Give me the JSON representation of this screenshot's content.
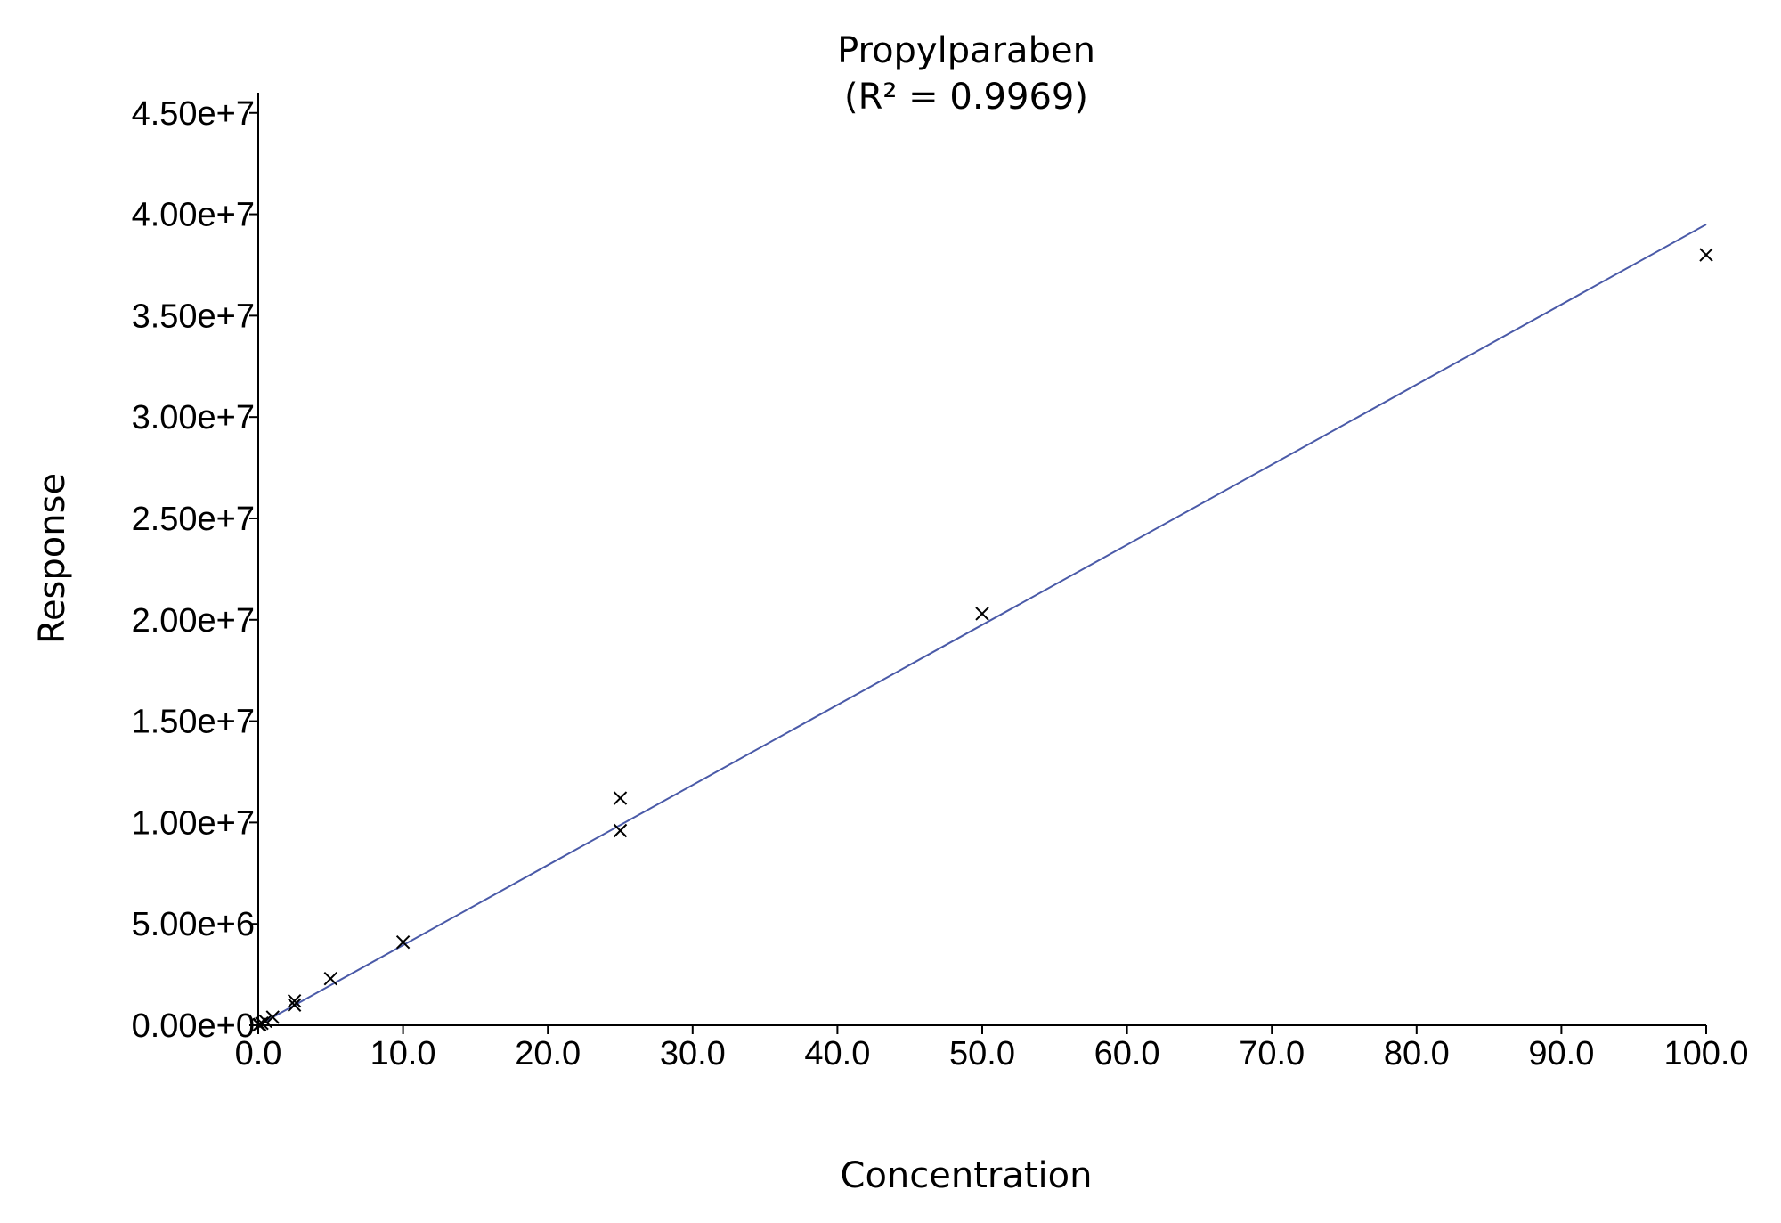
{
  "chart_data": {
    "type": "scatter",
    "title": "Propylparaben",
    "subtitle": "(R² = 0.9969)",
    "xlabel": "Concentration",
    "ylabel": "Response",
    "xlim": [
      0,
      100
    ],
    "ylim": [
      0,
      46000000
    ],
    "grid": false,
    "colors": {
      "fit_line": "#4a5aa8",
      "points": "#000000",
      "axes": "#000000"
    },
    "x_ticks": [
      {
        "value": 0,
        "label": "0.0"
      },
      {
        "value": 10,
        "label": "10.0"
      },
      {
        "value": 20,
        "label": "20.0"
      },
      {
        "value": 30,
        "label": "30.0"
      },
      {
        "value": 40,
        "label": "40.0"
      },
      {
        "value": 50,
        "label": "50.0"
      },
      {
        "value": 60,
        "label": "60.0"
      },
      {
        "value": 70,
        "label": "70.0"
      },
      {
        "value": 80,
        "label": "80.0"
      },
      {
        "value": 90,
        "label": "90.0"
      },
      {
        "value": 100,
        "label": "100.0"
      }
    ],
    "y_ticks": [
      {
        "value": 0,
        "label": "0.00e+0"
      },
      {
        "value": 5000000,
        "label": "5.00e+6"
      },
      {
        "value": 10000000,
        "label": "1.00e+7"
      },
      {
        "value": 15000000,
        "label": "1.50e+7"
      },
      {
        "value": 20000000,
        "label": "2.00e+7"
      },
      {
        "value": 25000000,
        "label": "2.50e+7"
      },
      {
        "value": 30000000,
        "label": "3.00e+7"
      },
      {
        "value": 35000000,
        "label": "3.50e+7"
      },
      {
        "value": 40000000,
        "label": "4.00e+7"
      },
      {
        "value": 45000000,
        "label": "4.50e+7"
      }
    ],
    "series": [
      {
        "marker": "x",
        "points": [
          {
            "x": 0.05,
            "y": 20000
          },
          {
            "x": 0.1,
            "y": 40000
          },
          {
            "x": 0.25,
            "y": 100000
          },
          {
            "x": 0.5,
            "y": 200000
          },
          {
            "x": 1.0,
            "y": 400000
          },
          {
            "x": 2.5,
            "y": 1000000
          },
          {
            "x": 2.5,
            "y": 1200000
          },
          {
            "x": 5.0,
            "y": 2300000
          },
          {
            "x": 10.0,
            "y": 4100000
          },
          {
            "x": 25.0,
            "y": 9600000
          },
          {
            "x": 25.0,
            "y": 11200000
          },
          {
            "x": 50.0,
            "y": 20300000
          },
          {
            "x": 100.0,
            "y": 38000000
          }
        ]
      }
    ],
    "fit_line": {
      "x": [
        0,
        100
      ],
      "y": [
        0,
        39500000
      ]
    }
  }
}
